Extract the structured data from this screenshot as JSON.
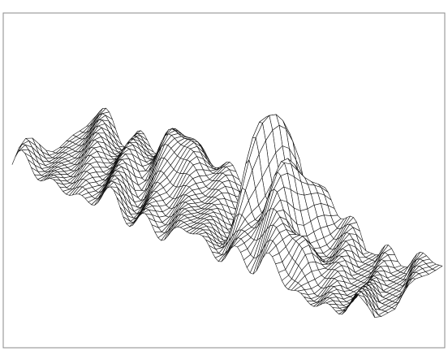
{
  "chart_data": {
    "type": "surface"
  }
}
